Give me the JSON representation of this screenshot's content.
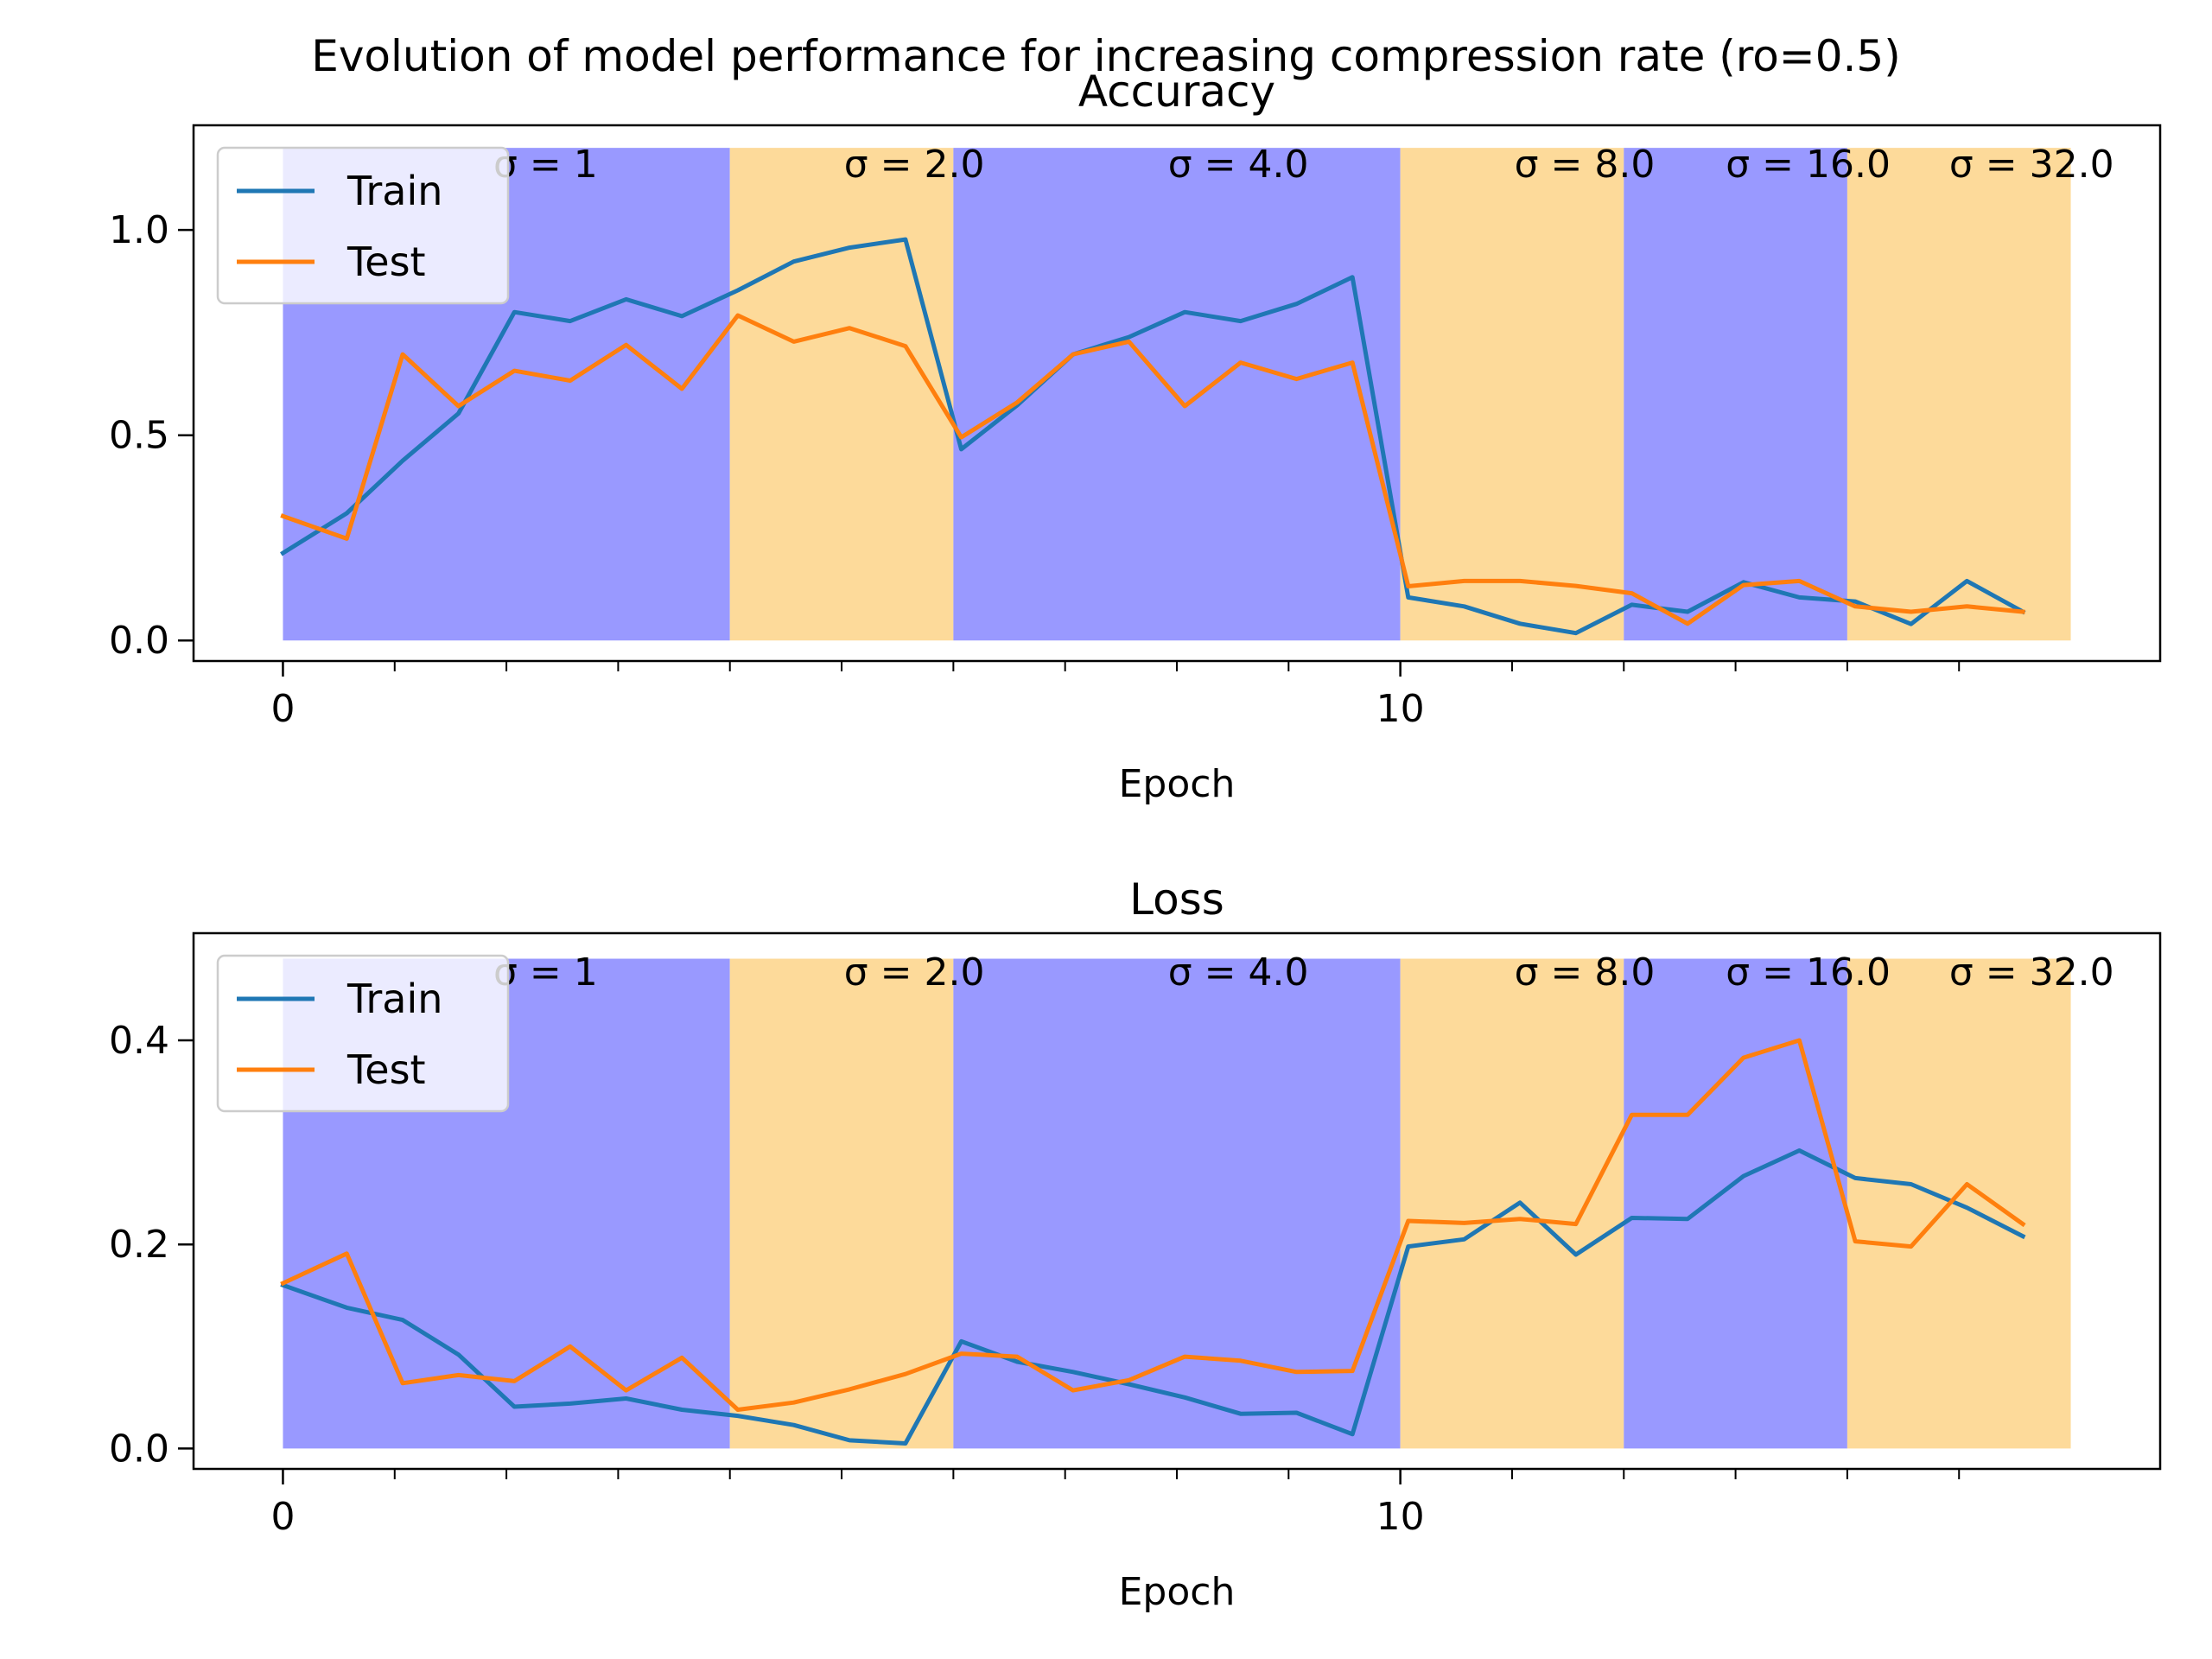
{
  "suptitle": "Evolution of model performance for increasing compression rate (ro=0.5)",
  "colors": {
    "train": "#1f77b4",
    "test": "#ff7f0e",
    "band_blue": "#9999ff",
    "band_orange": "#fdda9a"
  },
  "chart_data": [
    {
      "type": "line",
      "title": "Accuracy",
      "xlabel": "Epoch",
      "ylabel": "",
      "xlim": [
        -0.8,
        16.8
      ],
      "ylim": [
        -0.05,
        1.255
      ],
      "xticks": [
        0,
        10
      ],
      "xticks_minor": [
        0,
        1,
        2,
        3,
        4,
        5,
        6,
        7,
        8,
        9,
        10,
        11,
        12,
        13,
        14,
        15
      ],
      "yticks": [
        0.0,
        0.5,
        1.0
      ],
      "ytick_labels": [
        "0.0",
        "0.5",
        "1.0"
      ],
      "legend": {
        "placement": "upper-left",
        "entries": [
          "Train",
          "Test"
        ]
      },
      "bands": [
        {
          "x0": 0,
          "x1": 4,
          "color": "blue",
          "label": "σ = 1",
          "label_x": 2.35
        },
        {
          "x0": 4,
          "x1": 6,
          "color": "orange",
          "label": "σ = 2.0",
          "label_x": 5.65
        },
        {
          "x0": 6,
          "x1": 10,
          "color": "blue",
          "label": "σ = 4.0",
          "label_x": 8.55
        },
        {
          "x0": 10,
          "x1": 12,
          "color": "orange",
          "label": "σ = 8.0",
          "label_x": 11.65
        },
        {
          "x0": 12,
          "x1": 14,
          "color": "blue",
          "label": "σ = 16.0",
          "label_x": 13.65
        },
        {
          "x0": 14,
          "x1": 16,
          "color": "orange",
          "label": "σ = 32.0",
          "label_x": 15.65
        }
      ],
      "band_top": 1.2,
      "series": [
        {
          "name": "Train",
          "x": [
            0,
            0.571,
            1.071,
            1.571,
            2.071,
            2.571,
            3.071,
            3.571,
            4.071,
            4.571,
            5.071,
            5.571,
            6.071,
            6.571,
            7.071,
            7.571,
            8.071,
            8.571,
            9.071,
            9.571,
            10.071,
            10.571,
            11.071,
            11.571,
            12.071,
            12.571,
            13.071,
            13.571,
            14.071,
            14.571,
            15.071,
            15.571
          ],
          "y": [
            0.213,
            0.31,
            0.438,
            0.553,
            0.8,
            0.778,
            0.831,
            0.79,
            0.853,
            0.923,
            0.957,
            0.977,
            0.466,
            0.573,
            0.697,
            0.739,
            0.8,
            0.778,
            0.82,
            0.885,
            0.105,
            0.083,
            0.041,
            0.018,
            0.087,
            0.07,
            0.142,
            0.105,
            0.095,
            0.04,
            0.145,
            0.07
          ]
        },
        {
          "name": "Test",
          "x": [
            0,
            0.571,
            1.071,
            1.571,
            2.071,
            2.571,
            3.071,
            3.571,
            4.071,
            4.571,
            5.071,
            5.571,
            6.071,
            6.571,
            7.071,
            7.571,
            8.071,
            8.571,
            9.071,
            9.571,
            10.071,
            10.571,
            11.071,
            11.571,
            12.071,
            12.571,
            13.071,
            13.571,
            14.071,
            14.571,
            15.071,
            15.571
          ],
          "y": [
            0.303,
            0.248,
            0.697,
            0.571,
            0.657,
            0.633,
            0.72,
            0.613,
            0.792,
            0.728,
            0.761,
            0.717,
            0.495,
            0.58,
            0.697,
            0.728,
            0.571,
            0.677,
            0.637,
            0.677,
            0.132,
            0.145,
            0.145,
            0.133,
            0.115,
            0.041,
            0.135,
            0.145,
            0.083,
            0.07,
            0.083,
            0.07
          ]
        }
      ]
    },
    {
      "type": "line",
      "title": "Loss",
      "xlabel": "Epoch",
      "ylabel": "",
      "xlim": [
        -0.8,
        16.8
      ],
      "ylim": [
        -0.02,
        0.505
      ],
      "xticks": [
        0,
        10
      ],
      "xticks_minor": [
        0,
        1,
        2,
        3,
        4,
        5,
        6,
        7,
        8,
        9,
        10,
        11,
        12,
        13,
        14,
        15
      ],
      "yticks": [
        0.0,
        0.2,
        0.4
      ],
      "ytick_labels": [
        "0.0",
        "0.2",
        "0.4"
      ],
      "legend": {
        "placement": "upper-left",
        "entries": [
          "Train",
          "Test"
        ]
      },
      "bands": [
        {
          "x0": 0,
          "x1": 4,
          "color": "blue",
          "label": "σ = 1",
          "label_x": 2.35
        },
        {
          "x0": 4,
          "x1": 6,
          "color": "orange",
          "label": "σ = 2.0",
          "label_x": 5.65
        },
        {
          "x0": 6,
          "x1": 10,
          "color": "blue",
          "label": "σ = 4.0",
          "label_x": 8.55
        },
        {
          "x0": 10,
          "x1": 12,
          "color": "orange",
          "label": "σ = 8.0",
          "label_x": 11.65
        },
        {
          "x0": 12,
          "x1": 14,
          "color": "blue",
          "label": "σ = 16.0",
          "label_x": 13.65
        },
        {
          "x0": 14,
          "x1": 16,
          "color": "orange",
          "label": "σ = 32.0",
          "label_x": 15.65
        }
      ],
      "band_top": 0.48,
      "series": [
        {
          "name": "Train",
          "x": [
            0,
            0.571,
            1.071,
            1.571,
            2.071,
            2.571,
            3.071,
            3.571,
            4.071,
            4.571,
            5.071,
            5.571,
            6.071,
            6.571,
            7.071,
            7.571,
            8.071,
            8.571,
            9.071,
            9.571,
            10.071,
            10.571,
            11.071,
            11.571,
            12.071,
            12.571,
            13.071,
            13.571,
            14.071,
            14.571,
            15.071,
            15.571
          ],
          "y": [
            0.16,
            0.138,
            0.126,
            0.092,
            0.041,
            0.044,
            0.049,
            0.038,
            0.032,
            0.023,
            0.008,
            0.005,
            0.105,
            0.085,
            0.075,
            0.063,
            0.05,
            0.034,
            0.035,
            0.014,
            0.198,
            0.205,
            0.241,
            0.19,
            0.226,
            0.225,
            0.267,
            0.292,
            0.265,
            0.259,
            0.236,
            0.208
          ]
        },
        {
          "name": "Test",
          "x": [
            0,
            0.571,
            1.071,
            1.571,
            2.071,
            2.571,
            3.071,
            3.571,
            4.071,
            4.571,
            5.071,
            5.571,
            6.071,
            6.571,
            7.071,
            7.571,
            8.071,
            8.571,
            9.071,
            9.571,
            10.071,
            10.571,
            11.071,
            11.571,
            12.071,
            12.571,
            13.071,
            13.571,
            14.071,
            14.571,
            15.071,
            15.571
          ],
          "y": [
            0.162,
            0.191,
            0.064,
            0.072,
            0.066,
            0.1,
            0.057,
            0.089,
            0.038,
            0.045,
            0.058,
            0.073,
            0.093,
            0.09,
            0.057,
            0.067,
            0.09,
            0.086,
            0.075,
            0.076,
            0.223,
            0.221,
            0.225,
            0.22,
            0.327,
            0.327,
            0.383,
            0.4,
            0.203,
            0.198,
            0.259,
            0.22
          ]
        }
      ]
    }
  ]
}
